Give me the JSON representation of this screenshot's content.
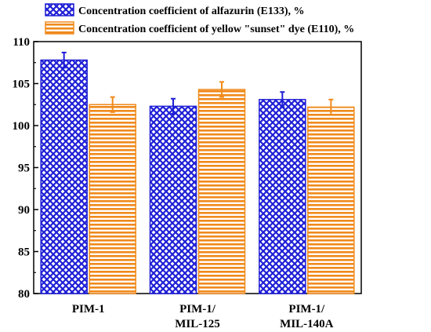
{
  "chart_data": {
    "type": "bar",
    "title": "",
    "xlabel": "",
    "ylabel": "",
    "ylim": [
      80,
      110
    ],
    "yticks": [
      80,
      85,
      90,
      95,
      100,
      105,
      110
    ],
    "grid": false,
    "legend_placement": "top-left",
    "categories": [
      [
        "PIM-1"
      ],
      [
        "PIM-1/",
        "MIL-125"
      ],
      [
        "PIM-1/",
        "MIL-140A"
      ]
    ],
    "series": [
      {
        "name": "Concentration coefficient of alfazurin (E133), %",
        "values": [
          107.8,
          102.3,
          103.1
        ],
        "errors": [
          0.9,
          0.9,
          0.9
        ],
        "color": "#1f1fd6",
        "pattern": "crosshatch"
      },
      {
        "name": "Concentration coefficient of yellow \"sunset\" dye (E110), %",
        "values": [
          102.5,
          104.3,
          102.2
        ],
        "errors": [
          0.9,
          0.9,
          0.9
        ],
        "color": "#f08a1c",
        "pattern": "horizontal-lines"
      }
    ]
  }
}
